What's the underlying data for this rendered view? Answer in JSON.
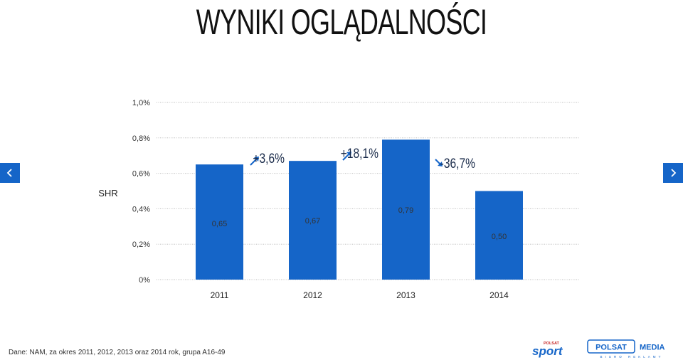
{
  "page": {
    "title": "WYNIKI OGLĄDALNOŚCI",
    "footnote": "Dane: NAM, za okres 2011, 2012, 2013 oraz 2014 rok, grupa A16-49",
    "logos": {
      "sport_top": "POLSAT",
      "sport_main": "sport",
      "media_left": "POLSAT",
      "media_right": "MEDIA",
      "media_sub": "BIURO REKLAMY"
    },
    "nav": {
      "prev_icon": "chevron-left-icon",
      "next_icon": "chevron-right-icon"
    }
  },
  "chart_data": {
    "type": "bar",
    "categories": [
      "2011",
      "2012",
      "2013",
      "2014"
    ],
    "values": [
      0.65,
      0.67,
      0.79,
      0.5
    ],
    "value_labels": [
      "0,65",
      "0,67",
      "0,79",
      "0,50"
    ],
    "ylabel": "SHR",
    "ylim": [
      0,
      1.0
    ],
    "yticks": [
      0,
      0.2,
      0.4,
      0.6,
      0.8,
      1.0
    ],
    "ytick_labels": [
      "0%",
      "0,2%",
      "0,4%",
      "0,6%",
      "0,8%",
      "1,0%"
    ],
    "grid": true,
    "bar_color": "#1565c8",
    "changes": [
      {
        "label": "+3,6%",
        "direction": "up"
      },
      {
        "label": "+18,1%",
        "direction": "up"
      },
      {
        "label": "-36,7%",
        "direction": "down"
      }
    ]
  }
}
